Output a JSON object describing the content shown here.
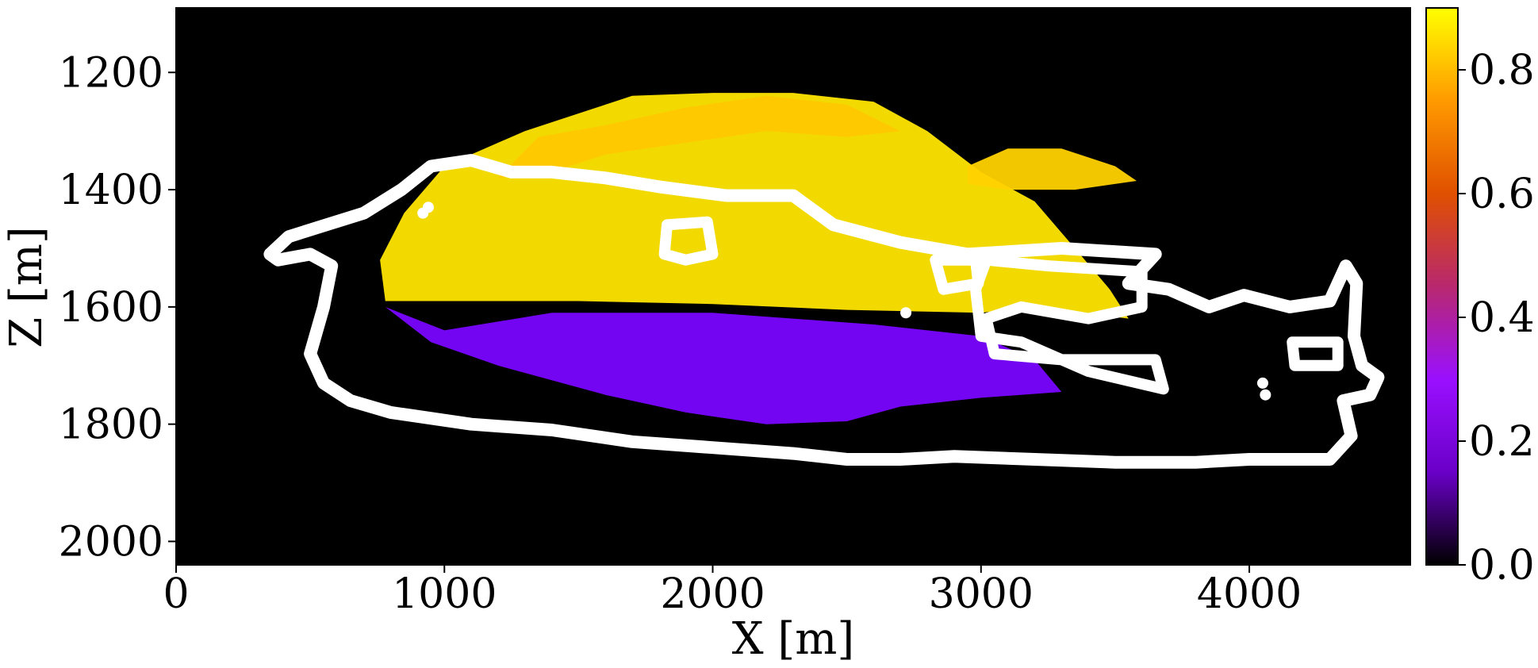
{
  "chart_data": {
    "type": "heatmap",
    "title": "",
    "xlabel": "X [m]",
    "ylabel": "Z [m]",
    "xlim": [
      0,
      4600
    ],
    "ylim": [
      2040,
      1090
    ],
    "x_ticks": [
      0,
      1000,
      2000,
      3000,
      4000
    ],
    "y_ticks": [
      1200,
      1400,
      1600,
      1800,
      2000
    ],
    "colormap": "gnuplot",
    "colorbar": {
      "range": [
        0,
        0.9
      ],
      "ticks": [
        0.0,
        0.2,
        0.4,
        0.6,
        0.8
      ],
      "tick_labels": [
        "0.0",
        "0.2",
        "0.4",
        "0.6",
        "0.8"
      ],
      "colors": [
        "#000000",
        "#6a00c8",
        "#9a10ff",
        "#b8286e",
        "#e05000",
        "#ff9a00",
        "#ffff00"
      ]
    },
    "background_value": 0.0,
    "regions": [
      {
        "name": "lower zone",
        "value": 0.2,
        "color": "#7a05ff",
        "outline": [
          [
            780,
            1600
          ],
          [
            1000,
            1640
          ],
          [
            1400,
            1610
          ],
          [
            2000,
            1610
          ],
          [
            2600,
            1630
          ],
          [
            3000,
            1650
          ],
          [
            3200,
            1690
          ],
          [
            3300,
            1745
          ],
          [
            3000,
            1755
          ],
          [
            2700,
            1770
          ],
          [
            2500,
            1795
          ],
          [
            2200,
            1800
          ],
          [
            1900,
            1780
          ],
          [
            1600,
            1750
          ],
          [
            1200,
            1700
          ],
          [
            950,
            1660
          ]
        ]
      },
      {
        "name": "upper zone",
        "value": 0.85,
        "color": "#ffe600",
        "outline": [
          [
            780,
            1590
          ],
          [
            760,
            1520
          ],
          [
            850,
            1440
          ],
          [
            1000,
            1360
          ],
          [
            1300,
            1300
          ],
          [
            1500,
            1270
          ],
          [
            1700,
            1240
          ],
          [
            2000,
            1235
          ],
          [
            2300,
            1235
          ],
          [
            2600,
            1250
          ],
          [
            2800,
            1300
          ],
          [
            3000,
            1370
          ],
          [
            3200,
            1420
          ],
          [
            3350,
            1500
          ],
          [
            3480,
            1570
          ],
          [
            3550,
            1620
          ],
          [
            3200,
            1600
          ],
          [
            3000,
            1610
          ],
          [
            2500,
            1605
          ],
          [
            2000,
            1595
          ],
          [
            1500,
            1590
          ],
          [
            1000,
            1590
          ]
        ]
      },
      {
        "name": "top fragment",
        "value": 0.7,
        "color": "#ffc800",
        "outline": [
          [
            1200,
            1380
          ],
          [
            1350,
            1310
          ],
          [
            1600,
            1290
          ],
          [
            1900,
            1260
          ],
          [
            2200,
            1240
          ],
          [
            2500,
            1255
          ],
          [
            2700,
            1300
          ],
          [
            2500,
            1310
          ],
          [
            2200,
            1300
          ],
          [
            1900,
            1320
          ],
          [
            1600,
            1340
          ],
          [
            1400,
            1370
          ]
        ]
      },
      {
        "name": "right fragment",
        "value": 0.8,
        "color": "#ffd200",
        "outline": [
          [
            2950,
            1360
          ],
          [
            3100,
            1330
          ],
          [
            3300,
            1330
          ],
          [
            3500,
            1360
          ],
          [
            3580,
            1385
          ],
          [
            3350,
            1400
          ],
          [
            3100,
            1400
          ],
          [
            2950,
            1390
          ]
        ]
      }
    ],
    "contour": {
      "color": "#ffffff",
      "outer": [
        [
          380,
          1520
        ],
        [
          350,
          1510
        ],
        [
          420,
          1480
        ],
        [
          560,
          1460
        ],
        [
          700,
          1440
        ],
        [
          840,
          1400
        ],
        [
          950,
          1360
        ],
        [
          1100,
          1350
        ],
        [
          1250,
          1370
        ],
        [
          1400,
          1370
        ],
        [
          1600,
          1380
        ],
        [
          1800,
          1395
        ],
        [
          2050,
          1410
        ],
        [
          2300,
          1410
        ],
        [
          2450,
          1460
        ],
        [
          2700,
          1490
        ],
        [
          2950,
          1510
        ],
        [
          3300,
          1500
        ],
        [
          3650,
          1510
        ],
        [
          3550,
          1560
        ],
        [
          3700,
          1570
        ],
        [
          3850,
          1600
        ],
        [
          3980,
          1580
        ],
        [
          4150,
          1600
        ],
        [
          4300,
          1590
        ],
        [
          4360,
          1530
        ],
        [
          4400,
          1560
        ],
        [
          4390,
          1650
        ],
        [
          4420,
          1700
        ],
        [
          4480,
          1720
        ],
        [
          4450,
          1750
        ],
        [
          4350,
          1760
        ],
        [
          4380,
          1820
        ],
        [
          4300,
          1860
        ],
        [
          4000,
          1860
        ],
        [
          3800,
          1865
        ],
        [
          3500,
          1865
        ],
        [
          3200,
          1860
        ],
        [
          2900,
          1855
        ],
        [
          2700,
          1860
        ],
        [
          2500,
          1860
        ],
        [
          2300,
          1850
        ],
        [
          2000,
          1840
        ],
        [
          1700,
          1830
        ],
        [
          1400,
          1810
        ],
        [
          1100,
          1800
        ],
        [
          800,
          1780
        ],
        [
          650,
          1760
        ],
        [
          550,
          1730
        ],
        [
          500,
          1680
        ],
        [
          550,
          1600
        ],
        [
          580,
          1530
        ],
        [
          500,
          1510
        ]
      ],
      "inner_loops": [
        [
          [
            3020,
            1520
          ],
          [
            3250,
            1530
          ],
          [
            3600,
            1540
          ],
          [
            3600,
            1600
          ],
          [
            3400,
            1620
          ],
          [
            3150,
            1600
          ],
          [
            3020,
            1620
          ],
          [
            3050,
            1680
          ],
          [
            3300,
            1690
          ],
          [
            3650,
            1690
          ],
          [
            3680,
            1740
          ],
          [
            3400,
            1710
          ],
          [
            3150,
            1660
          ],
          [
            3000,
            1650
          ],
          [
            2980,
            1570
          ]
        ],
        [
          [
            4160,
            1660
          ],
          [
            4330,
            1660
          ],
          [
            4330,
            1700
          ],
          [
            4170,
            1700
          ]
        ],
        [
          [
            1830,
            1460
          ],
          [
            1980,
            1455
          ],
          [
            2000,
            1510
          ],
          [
            1900,
            1520
          ],
          [
            1820,
            1510
          ]
        ],
        [
          [
            2830,
            1520
          ],
          [
            2980,
            1520
          ],
          [
            2990,
            1560
          ],
          [
            2860,
            1570
          ]
        ]
      ],
      "marks": [
        [
          4050,
          1730
        ],
        [
          4060,
          1750
        ],
        [
          920,
          1440
        ],
        [
          940,
          1430
        ],
        [
          2720,
          1610
        ]
      ]
    }
  }
}
